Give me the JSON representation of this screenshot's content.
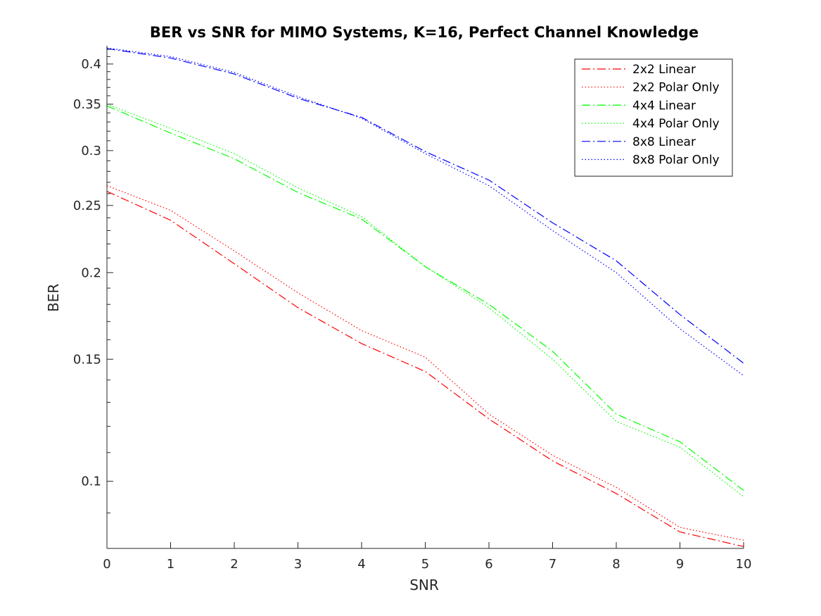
{
  "chart_data": {
    "type": "line",
    "title": "BER vs SNR for MIMO Systems, K=16, Perfect Channel Knowledge",
    "xlabel": "SNR",
    "ylabel": "BER",
    "xlim": [
      0,
      10
    ],
    "ylim": [
      0.08,
      0.425
    ],
    "yscale": "log",
    "grid": false,
    "legend_position": "top-right",
    "x_ticks": [
      "0",
      "1",
      "2",
      "3",
      "4",
      "5",
      "6",
      "7",
      "8",
      "9",
      "10"
    ],
    "y_ticks": [
      {
        "value": 0.1,
        "label": "0.1"
      },
      {
        "value": 0.15,
        "label": "0.15"
      },
      {
        "value": 0.2,
        "label": "0.2"
      },
      {
        "value": 0.25,
        "label": "0.25"
      },
      {
        "value": 0.3,
        "label": "0.3"
      },
      {
        "value": 0.35,
        "label": "0.35"
      },
      {
        "value": 0.4,
        "label": "0.4"
      }
    ],
    "y_minor_ticks": [
      0.09,
      0.11,
      0.12,
      0.13,
      0.14,
      0.16,
      0.17,
      0.18,
      0.19,
      0.21,
      0.22,
      0.23,
      0.24,
      0.26,
      0.27,
      0.28,
      0.29,
      0.31,
      0.32,
      0.33,
      0.34,
      0.36,
      0.37,
      0.38,
      0.39,
      0.41,
      0.42
    ],
    "x": [
      0,
      1,
      2,
      3,
      4,
      5,
      6,
      7,
      8,
      9,
      10
    ],
    "series": [
      {
        "name": "2x2 Linear",
        "color": "#ff0000",
        "style": "dashdot",
        "values": [
          0.262,
          0.238,
          0.206,
          0.178,
          0.158,
          0.144,
          0.123,
          0.107,
          0.096,
          0.0845,
          0.0805
        ]
      },
      {
        "name": "2x2 Polar Only",
        "color": "#ff0000",
        "style": "dotted",
        "values": [
          0.267,
          0.246,
          0.215,
          0.187,
          0.165,
          0.151,
          0.125,
          0.109,
          0.098,
          0.0858,
          0.0822
        ]
      },
      {
        "name": "4x4 Linear",
        "color": "#00ff00",
        "style": "dashdot",
        "values": [
          0.348,
          0.318,
          0.292,
          0.261,
          0.239,
          0.204,
          0.18,
          0.154,
          0.125,
          0.114,
          0.097
        ]
      },
      {
        "name": "4x4 Polar Only",
        "color": "#00ff00",
        "style": "dotted",
        "values": [
          0.35,
          0.323,
          0.297,
          0.265,
          0.241,
          0.204,
          0.178,
          0.15,
          0.122,
          0.112,
          0.095
        ]
      },
      {
        "name": "8x8 Linear",
        "color": "#0000ff",
        "style": "dashdot",
        "values": [
          0.421,
          0.408,
          0.387,
          0.357,
          0.335,
          0.299,
          0.272,
          0.236,
          0.208,
          0.174,
          0.148
        ]
      },
      {
        "name": "8x8 Polar Only",
        "color": "#0000ff",
        "style": "dotted",
        "values": [
          0.422,
          0.41,
          0.389,
          0.359,
          0.334,
          0.297,
          0.267,
          0.23,
          0.2,
          0.166,
          0.142
        ]
      }
    ]
  }
}
